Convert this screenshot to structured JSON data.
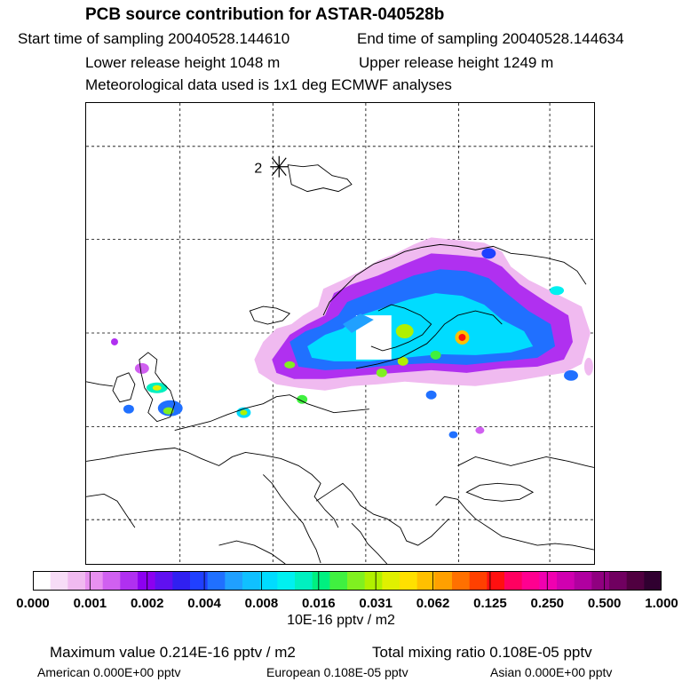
{
  "header": {
    "title": "PCB source contribution for ASTAR-040528b",
    "start_time": "Start time of sampling 20040528.144610",
    "end_time": "End time of sampling 20040528.144634",
    "lower_height": "Lower release height 1048 m",
    "upper_height": "Upper release height 1249 m",
    "met_data": "Meteorological data used is 1x1 deg ECMWF analyses"
  },
  "map": {
    "marker_label": "2",
    "marker_icon": "star-marker-icon"
  },
  "legend": {
    "ticks": [
      "0.000",
      "0.001",
      "0.002",
      "0.004",
      "0.008",
      "0.016",
      "0.031",
      "0.062",
      "0.125",
      "0.250",
      "0.500",
      "1.000"
    ],
    "colors": [
      "#ffffff",
      "#f7dcf7",
      "#f0baf0",
      "#e890f0",
      "#d060f0",
      "#b030f0",
      "#8c00f0",
      "#6010f0",
      "#3020f0",
      "#2040ff",
      "#2070ff",
      "#20a0ff",
      "#10c0ff",
      "#00dcff",
      "#00f0f0",
      "#00f0c0",
      "#00f080",
      "#40f040",
      "#80f020",
      "#b0f000",
      "#e0f000",
      "#ffe000",
      "#ffc000",
      "#ffa000",
      "#ff7000",
      "#ff4000",
      "#ff1010",
      "#ff0060",
      "#ff0090",
      "#f000b0",
      "#d000b0",
      "#b000a0",
      "#900080",
      "#700060",
      "#500040",
      "#300030"
    ],
    "unit": "10E-16 pptv / m2"
  },
  "footer": {
    "max_value": "Maximum value  0.214E-16 pptv / m2",
    "total_mixing": "Total mixing ratio  0.108E-05 pptv",
    "american": "American  0.000E+00 pptv",
    "european": "European  0.108E-05 pptv",
    "asian": "Asian  0.000E+00 pptv"
  }
}
